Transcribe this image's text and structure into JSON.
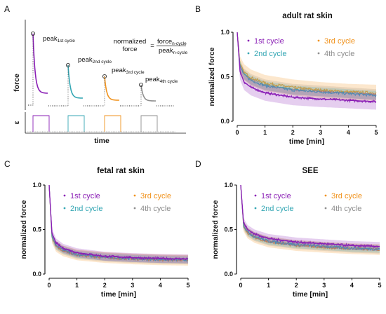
{
  "panel_letters": [
    "A",
    "B",
    "C",
    "D"
  ],
  "colors": {
    "c1": "#8a1fb5",
    "c2": "#35a7b4",
    "c3": "#f0921c",
    "c4": "#8e8e8e"
  },
  "schematic": {
    "ylabel_force": "force",
    "ylabel_strain": "ε",
    "xlabel": "time",
    "peaks": [
      {
        "main": "peak",
        "sub": "1st cycle"
      },
      {
        "main": "peak",
        "sub": "2nd cycle"
      },
      {
        "main": "peak",
        "sub": "3rd cycle"
      },
      {
        "main": "peak",
        "sub": "4th cycle"
      }
    ],
    "formula": {
      "lhs_line1": "normalized",
      "lhs_line2": "force",
      "equals": "=",
      "num_main": "force",
      "num_sub": "n-cycle",
      "den_main": "peak",
      "den_sub": "n-cycle"
    }
  },
  "chart_data": [
    {
      "type": "line",
      "panel": "B",
      "title": "adult rat skin",
      "xlabel": "time [min]",
      "ylabel": "normalized force",
      "xlim": [
        0,
        5
      ],
      "ylim": [
        0,
        1
      ],
      "xticks": [
        "0",
        "1",
        "2",
        "3",
        "4",
        "5"
      ],
      "yticks": [
        "0.0",
        "0.5",
        "1.0"
      ],
      "legend": [
        "1st cycle",
        "2nd cycle",
        "3rd cycle",
        "4th cycle"
      ],
      "series": [
        {
          "name": "1st cycle",
          "x": [
            0,
            0.1,
            0.25,
            0.5,
            1,
            2,
            3,
            4,
            5
          ],
          "values": [
            1.0,
            0.56,
            0.44,
            0.38,
            0.32,
            0.27,
            0.25,
            0.235,
            0.22
          ]
        },
        {
          "name": "2nd cycle",
          "x": [
            0,
            0.1,
            0.25,
            0.5,
            1,
            2,
            3,
            4,
            5
          ],
          "values": [
            1.0,
            0.62,
            0.52,
            0.46,
            0.4,
            0.35,
            0.33,
            0.31,
            0.29
          ]
        },
        {
          "name": "3rd cycle",
          "x": [
            0,
            0.1,
            0.25,
            0.5,
            1,
            2,
            3,
            4,
            5
          ],
          "values": [
            1.0,
            0.64,
            0.55,
            0.49,
            0.43,
            0.38,
            0.35,
            0.33,
            0.32
          ]
        },
        {
          "name": "4th cycle",
          "x": [
            0,
            0.1,
            0.25,
            0.5,
            1,
            2,
            3,
            4,
            5
          ],
          "values": [
            1.0,
            0.63,
            0.53,
            0.47,
            0.41,
            0.36,
            0.34,
            0.32,
            0.3
          ]
        }
      ]
    },
    {
      "type": "line",
      "panel": "C",
      "title": "fetal rat skin",
      "xlabel": "time [min]",
      "ylabel": "normalized force",
      "xlim": [
        0,
        5
      ],
      "ylim": [
        0,
        1
      ],
      "xticks": [
        "0",
        "1",
        "2",
        "3",
        "4",
        "5"
      ],
      "yticks": [
        "0.0",
        "0.5",
        "1.0"
      ],
      "legend": [
        "1st cycle",
        "2nd cycle",
        "3rd cycle",
        "4th cycle"
      ],
      "series": [
        {
          "name": "1st cycle",
          "x": [
            0,
            0.1,
            0.25,
            0.5,
            1,
            2,
            3,
            4,
            5
          ],
          "values": [
            1.0,
            0.46,
            0.35,
            0.29,
            0.24,
            0.2,
            0.185,
            0.175,
            0.17
          ]
        },
        {
          "name": "2nd cycle",
          "x": [
            0,
            0.1,
            0.25,
            0.5,
            1,
            2,
            3,
            4,
            5
          ],
          "values": [
            1.0,
            0.42,
            0.32,
            0.27,
            0.22,
            0.19,
            0.175,
            0.165,
            0.16
          ]
        },
        {
          "name": "3rd cycle",
          "x": [
            0,
            0.1,
            0.25,
            0.5,
            1,
            2,
            3,
            4,
            5
          ],
          "values": [
            1.0,
            0.41,
            0.31,
            0.26,
            0.215,
            0.185,
            0.17,
            0.16,
            0.155
          ]
        },
        {
          "name": "4th cycle",
          "x": [
            0,
            0.1,
            0.25,
            0.5,
            1,
            2,
            3,
            4,
            5
          ],
          "values": [
            1.0,
            0.42,
            0.32,
            0.27,
            0.22,
            0.19,
            0.175,
            0.165,
            0.16
          ]
        }
      ]
    },
    {
      "type": "line",
      "panel": "D",
      "title": "SEE",
      "xlabel": "time [min]",
      "ylabel": "normalized force",
      "xlim": [
        0,
        5
      ],
      "ylim": [
        0,
        1
      ],
      "xticks": [
        "0",
        "1",
        "2",
        "3",
        "4",
        "5"
      ],
      "yticks": [
        "0.0",
        "0.5",
        "1.0"
      ],
      "legend": [
        "1st cycle",
        "2nd cycle",
        "3rd cycle",
        "4th cycle"
      ],
      "series": [
        {
          "name": "1st cycle",
          "x": [
            0,
            0.1,
            0.25,
            0.5,
            1,
            2,
            3,
            4,
            5
          ],
          "values": [
            1.0,
            0.58,
            0.5,
            0.45,
            0.4,
            0.36,
            0.34,
            0.32,
            0.31
          ]
        },
        {
          "name": "2nd cycle",
          "x": [
            0,
            0.1,
            0.25,
            0.5,
            1,
            2,
            3,
            4,
            5
          ],
          "values": [
            1.0,
            0.55,
            0.47,
            0.42,
            0.37,
            0.33,
            0.31,
            0.29,
            0.28
          ]
        },
        {
          "name": "3rd cycle",
          "x": [
            0,
            0.1,
            0.25,
            0.5,
            1,
            2,
            3,
            4,
            5
          ],
          "values": [
            1.0,
            0.54,
            0.46,
            0.41,
            0.36,
            0.32,
            0.3,
            0.285,
            0.275
          ]
        },
        {
          "name": "4th cycle",
          "x": [
            0,
            0.1,
            0.25,
            0.5,
            1,
            2,
            3,
            4,
            5
          ],
          "values": [
            1.0,
            0.55,
            0.47,
            0.42,
            0.37,
            0.33,
            0.31,
            0.29,
            0.28
          ]
        }
      ]
    }
  ]
}
